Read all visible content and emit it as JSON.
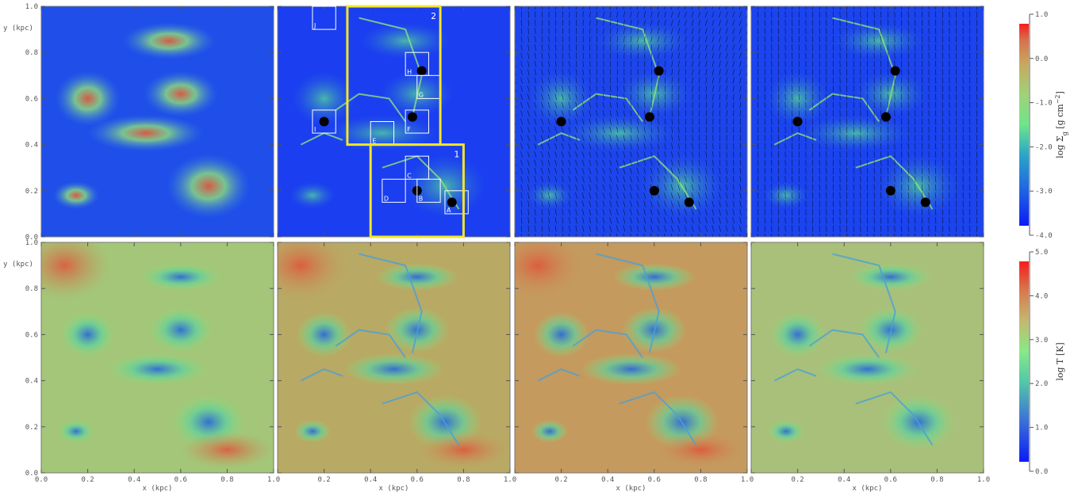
{
  "chart_data": {
    "type": "heatmap",
    "rows": [
      {
        "quantity": "log Σ_g [g cm^-2]",
        "colorbar": {
          "label_main": "log Σ",
          "label_sub": "g",
          "label_unit": " [g cm",
          "label_exp": "−2",
          "label_close": "]",
          "range": [
            -4.0,
            1.0
          ],
          "ticks": [
            "1.0",
            "0.0",
            "-1.0",
            "-2.0",
            "-3.0",
            "-4.0"
          ],
          "tick_values": [
            1.0,
            0.0,
            -1.0,
            -2.0,
            -3.0,
            -4.0
          ]
        }
      },
      {
        "quantity": "log T [K]",
        "colorbar": {
          "label_main": "log T [K]",
          "range": [
            0.0,
            5.0
          ],
          "ticks": [
            "5.0",
            "4.0",
            "3.0",
            "2.0",
            "1.0",
            "0.0"
          ],
          "tick_values": [
            5.0,
            4.0,
            3.0,
            2.0,
            1.0,
            0.0
          ]
        }
      }
    ],
    "panels_per_row": 4,
    "xlabel": "x (kpc)",
    "ylabel": "y (kpc)",
    "xlim": [
      0.0,
      1.0
    ],
    "ylim": [
      0.0,
      1.0
    ],
    "xticks": [
      [
        "0.0",
        "0.2",
        "0.4",
        "0.6",
        "0.8",
        "1.0"
      ],
      [
        "0.2",
        "0.4",
        "0.6",
        "0.8",
        "1.0"
      ],
      [
        "0.2",
        "0.4",
        "0.6",
        "0.8",
        "1.0"
      ],
      [
        "0.2",
        "0.4",
        "0.6",
        "0.8",
        "1.0"
      ]
    ],
    "yticks": [
      "1.0",
      "0.8",
      "0.6",
      "0.4",
      "0.2",
      "0.0"
    ],
    "xtick_values": [
      0.0,
      0.2,
      0.4,
      0.6,
      0.8,
      1.0
    ],
    "ytick_values": [
      1.0,
      0.8,
      0.6,
      0.4,
      0.2,
      0.0
    ],
    "regions": [
      {
        "label": "1",
        "x": [
          0.4,
          0.8
        ],
        "y": [
          0.0,
          0.4
        ],
        "color": "#f5e626"
      },
      {
        "label": "2",
        "x": [
          0.3,
          0.7
        ],
        "y": [
          0.4,
          1.0
        ],
        "color": "#f5e626"
      }
    ],
    "subboxes": [
      {
        "label": "A",
        "x": [
          0.72,
          0.82
        ],
        "y": [
          0.1,
          0.2
        ]
      },
      {
        "label": "B",
        "x": [
          0.6,
          0.7
        ],
        "y": [
          0.15,
          0.25
        ]
      },
      {
        "label": "C",
        "x": [
          0.55,
          0.65
        ],
        "y": [
          0.25,
          0.35
        ]
      },
      {
        "label": "D",
        "x": [
          0.45,
          0.55
        ],
        "y": [
          0.15,
          0.25
        ]
      },
      {
        "label": "E",
        "x": [
          0.4,
          0.5
        ],
        "y": [
          0.4,
          0.5
        ]
      },
      {
        "label": "F",
        "x": [
          0.55,
          0.65
        ],
        "y": [
          0.45,
          0.55
        ]
      },
      {
        "label": "G",
        "x": [
          0.6,
          0.7
        ],
        "y": [
          0.6,
          0.7
        ]
      },
      {
        "label": "H",
        "x": [
          0.55,
          0.65
        ],
        "y": [
          0.7,
          0.8
        ]
      },
      {
        "label": "I",
        "x": [
          0.15,
          0.25
        ],
        "y": [
          0.45,
          0.55
        ]
      },
      {
        "label": "J",
        "x": [
          0.15,
          0.25
        ],
        "y": [
          0.9,
          1.0
        ]
      }
    ]
  }
}
